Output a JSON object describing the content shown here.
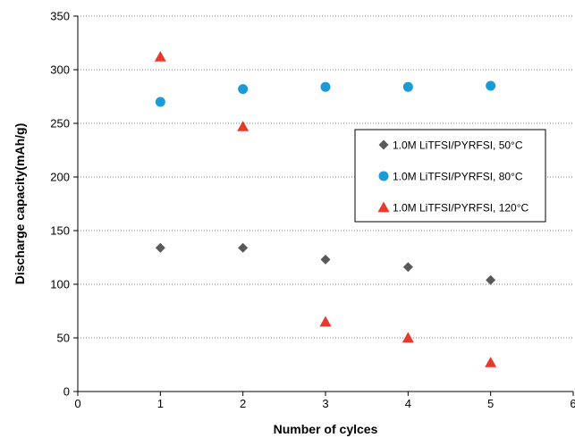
{
  "chart_data": {
    "type": "scatter",
    "title": "",
    "xlabel": "Number of cylces",
    "ylabel": "Discharge capacity(mAh/g)",
    "xlim": [
      0,
      6
    ],
    "ylim": [
      0,
      350
    ],
    "x_ticks": [
      0,
      1,
      2,
      3,
      4,
      5,
      6
    ],
    "y_ticks": [
      0,
      50,
      100,
      150,
      200,
      250,
      300,
      350
    ],
    "grid": "horizontal",
    "legend_position": "right",
    "series": [
      {
        "name": "1.0M LiTFSI/PYRFSI, 50°C",
        "marker": "diamond",
        "color": "#595959",
        "x": [
          1,
          2,
          3,
          4,
          5
        ],
        "y": [
          134,
          134,
          123,
          116,
          104
        ]
      },
      {
        "name": "1.0M LiTFSI/PYRFSI, 80°C",
        "marker": "circle",
        "color": "#1a9ad6",
        "x": [
          1,
          2,
          3,
          4,
          5
        ],
        "y": [
          270,
          282,
          284,
          284,
          285
        ]
      },
      {
        "name": "1.0M LiTFSI/PYRFSI, 120°C",
        "marker": "triangle",
        "color": "#e8392a",
        "x": [
          1,
          2,
          3,
          4,
          5
        ],
        "y": [
          312,
          247,
          65,
          50,
          27
        ]
      }
    ]
  }
}
